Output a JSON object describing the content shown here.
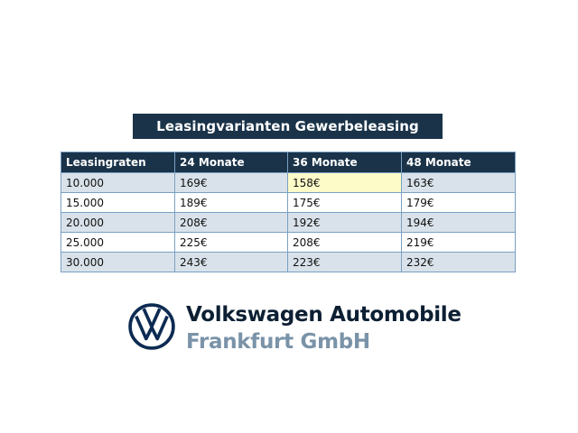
{
  "title": "Leasingvarianten Gewerbeleasing",
  "table": {
    "headers": [
      "Leasingraten",
      "24 Monate",
      "36 Monate",
      "48 Monate"
    ],
    "rows": [
      [
        "10.000",
        "169€",
        "158€",
        "163€"
      ],
      [
        "15.000",
        "189€",
        "175€",
        "179€"
      ],
      [
        "20.000",
        "208€",
        "192€",
        "194€"
      ],
      [
        "25.000",
        "225€",
        "208€",
        "219€"
      ],
      [
        "30.000",
        "243€",
        "223€",
        "232€"
      ]
    ]
  },
  "colors": {
    "header_bg": "#1a3349",
    "row_alt_bg": "#d9e2ea",
    "highlight_bg": "#fdfbc8",
    "company_dark": "#0d1f33",
    "company_grey": "#7a93a8"
  },
  "logo": {
    "icon": "vw-logo-icon",
    "line1": "Volkswagen Automobile",
    "line2": "Frankfurt GmbH"
  }
}
